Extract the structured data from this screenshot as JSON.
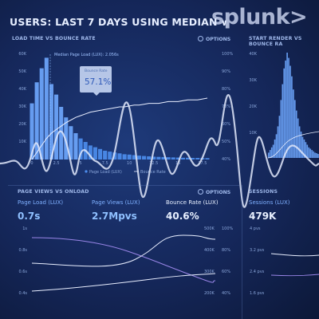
{
  "header": {
    "title": "USERS: LAST 7 DAYS USING MEDIAN",
    "logo": "splunk>"
  },
  "load_panel": {
    "title": "LOAD TIME VS BOUNCE RATE",
    "options": "OPTIONS",
    "median_label": "Median Page Load (LUX): 2.056s",
    "tooltip_label": "Bounce Rate",
    "tooltip_value": "57.1%",
    "legend_page_load": "Page Load (LUX)",
    "legend_bounce": "Bounce Rate",
    "y_ticks": [
      "60K",
      "50K",
      "40K",
      "30K",
      "20K",
      "10K"
    ],
    "y2_ticks": [
      "100%",
      "90%",
      "80%",
      "70%",
      "60%",
      "50%",
      "40%"
    ],
    "x_ticks": [
      "0",
      "2.5",
      "5",
      "7.5",
      "10",
      "12.5",
      "15",
      "17.5"
    ]
  },
  "start_panel": {
    "title": "START RENDER VS BOUNCE RA",
    "y_ticks": [
      "40K",
      "30K",
      "20K",
      "10K"
    ]
  },
  "pv_panel": {
    "title": "PAGE VIEWS VS ONLOAD",
    "options": "OPTIONS",
    "m1_label": "Page Load (LUX)",
    "m1_value": "0.7s",
    "m2_label": "Page Views (LUX)",
    "m2_value": "2.7Mpvs",
    "m3_label": "Bounce Rate (LUX)",
    "m3_value": "40.6%",
    "y_ticks": [
      "1s",
      "0.8s",
      "0.6s",
      "0.4s"
    ],
    "y2a_ticks": [
      "500K",
      "400K",
      "300K",
      "200K"
    ],
    "y2b_ticks": [
      "100%",
      "80%",
      "60%",
      "40%"
    ]
  },
  "sessions_panel": {
    "title": "SESSIONS",
    "m_label": "Sessions (LUX)",
    "m_value": "479K",
    "y_ticks": [
      "4 pvs",
      "3.2 pvs",
      "2.4 pvs",
      "1.6 pvs"
    ]
  },
  "colors": {
    "bar": "#4e8ff0",
    "bar_light": "#6fa8ff",
    "line": "#e8eeff",
    "purple": "#9a86e8",
    "accent": "#8fc0ff"
  },
  "chart_data": {
    "type": "bar",
    "x": [
      0,
      0.5,
      1,
      1.5,
      2,
      2.5,
      3,
      3.5,
      4,
      4.5,
      5,
      5.5,
      6,
      6.5,
      7,
      7.5,
      8,
      8.5,
      9,
      9.5,
      10,
      10.5,
      11,
      11.5,
      12,
      12.5,
      13,
      13.5,
      14,
      14.5,
      15,
      15.5,
      16,
      16.5,
      17,
      17.5,
      18
    ],
    "series": [
      {
        "name": "Page Load (LUX)",
        "values": [
          32,
          44,
          52,
          58,
          43,
          37,
          30,
          24,
          19,
          15,
          12,
          10,
          8,
          7,
          6,
          5,
          4.5,
          4,
          3.5,
          3,
          2.8,
          2.5,
          2.2,
          2,
          1.8,
          1.6,
          1.5,
          1.4,
          1.3,
          1.2,
          1.1,
          1,
          1,
          0.9,
          0.9,
          0.8,
          0.8
        ]
      },
      {
        "name": "Bounce Rate",
        "values": [
          40,
          44,
          48,
          52,
          55,
          57.1,
          59,
          61,
          62.5,
          64,
          65,
          66,
          67,
          67.5,
          68,
          68.5,
          69,
          69.5,
          70,
          70,
          70.5,
          71,
          71,
          71.5,
          72,
          72,
          72,
          72.5,
          73,
          73,
          73,
          73.5,
          74,
          74,
          74,
          74.5,
          75
        ]
      }
    ],
    "ylim": [
      0,
      60
    ],
    "y2lim": [
      40,
      100
    ],
    "xlim": [
      0,
      18
    ]
  },
  "start_chart": {
    "values": [
      2,
      3,
      4,
      5,
      7,
      9,
      12,
      16,
      22,
      28,
      34,
      37,
      40,
      38,
      35,
      31,
      26,
      22,
      18,
      15,
      12,
      10,
      8,
      7,
      6,
      5,
      4,
      3.5,
      3,
      2.5,
      2,
      1.8,
      1.5
    ],
    "ylim": [
      0,
      40
    ]
  }
}
